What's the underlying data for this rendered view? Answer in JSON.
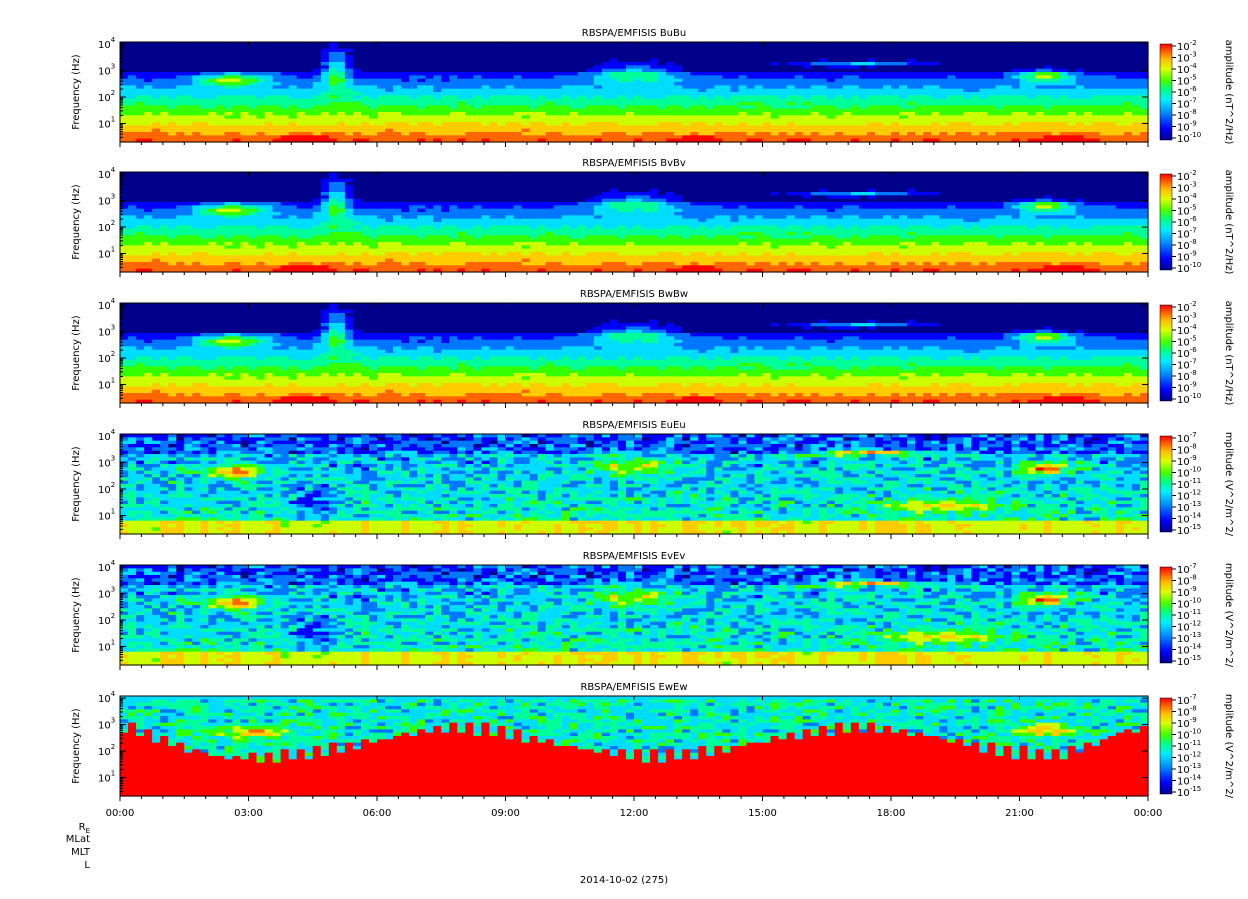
{
  "chart_data": [
    {
      "type": "heatmap",
      "title": "RBSPA/EMFISIS  BuBu",
      "ylabel": "Frequency (Hz)",
      "yscale": "log",
      "ylim": [
        2,
        12000
      ],
      "yticks": [
        {
          "v": 10,
          "t": "10",
          "e": "1"
        },
        {
          "v": 100,
          "t": "10",
          "e": "2"
        },
        {
          "v": 1000,
          "t": "10",
          "e": "3"
        },
        {
          "v": 10000,
          "t": "10",
          "e": "4"
        }
      ],
      "colorbar_label": "amplitude (nT^2/Hz)",
      "colorbar_ticks": [
        "-2",
        "-3",
        "-4",
        "-5",
        "-6",
        "-7",
        "-8",
        "-9",
        "-10"
      ],
      "style": "b"
    },
    {
      "type": "heatmap",
      "title": "RBSPA/EMFISIS  BvBv",
      "ylabel": "Frequency (Hz)",
      "yscale": "log",
      "ylim": [
        2,
        12000
      ],
      "yticks": [
        {
          "v": 10,
          "t": "10",
          "e": "1"
        },
        {
          "v": 100,
          "t": "10",
          "e": "2"
        },
        {
          "v": 1000,
          "t": "10",
          "e": "3"
        },
        {
          "v": 10000,
          "t": "10",
          "e": "4"
        }
      ],
      "colorbar_label": "amplitude (nT^2/Hz)",
      "colorbar_ticks": [
        "-2",
        "-3",
        "-4",
        "-5",
        "-6",
        "-7",
        "-8",
        "-9",
        "-10"
      ],
      "style": "b"
    },
    {
      "type": "heatmap",
      "title": "RBSPA/EMFISIS  BwBw",
      "ylabel": "Frequency (Hz)",
      "yscale": "log",
      "ylim": [
        2,
        12000
      ],
      "yticks": [
        {
          "v": 10,
          "t": "10",
          "e": "1"
        },
        {
          "v": 100,
          "t": "10",
          "e": "2"
        },
        {
          "v": 1000,
          "t": "10",
          "e": "3"
        },
        {
          "v": 10000,
          "t": "10",
          "e": "4"
        }
      ],
      "colorbar_label": "amplitude (nT^2/Hz)",
      "colorbar_ticks": [
        "-2",
        "-3",
        "-4",
        "-5",
        "-6",
        "-7",
        "-8",
        "-9",
        "-10"
      ],
      "style": "b"
    },
    {
      "type": "heatmap",
      "title": "RBSPA/EMFISIS  EuEu",
      "ylabel": "Frequency (Hz)",
      "yscale": "log",
      "ylim": [
        2,
        12000
      ],
      "yticks": [
        {
          "v": 10,
          "t": "10",
          "e": "1"
        },
        {
          "v": 100,
          "t": "10",
          "e": "2"
        },
        {
          "v": 1000,
          "t": "10",
          "e": "3"
        },
        {
          "v": 10000,
          "t": "10",
          "e": "4"
        }
      ],
      "colorbar_label": "mplitude (V^2/m^2/",
      "colorbar_ticks": [
        "-7",
        "-8",
        "-9",
        "-10",
        "-11",
        "-12",
        "-13",
        "-14",
        "-15"
      ],
      "style": "e"
    },
    {
      "type": "heatmap",
      "title": "RBSPA/EMFISIS  EvEv",
      "ylabel": "Frequency (Hz)",
      "yscale": "log",
      "ylim": [
        2,
        12000
      ],
      "yticks": [
        {
          "v": 10,
          "t": "10",
          "e": "1"
        },
        {
          "v": 100,
          "t": "10",
          "e": "2"
        },
        {
          "v": 1000,
          "t": "10",
          "e": "3"
        },
        {
          "v": 10000,
          "t": "10",
          "e": "4"
        }
      ],
      "colorbar_label": "mplitude (V^2/m^2/",
      "colorbar_ticks": [
        "-7",
        "-8",
        "-9",
        "-10",
        "-11",
        "-12",
        "-13",
        "-14",
        "-15"
      ],
      "style": "e"
    },
    {
      "type": "heatmap",
      "title": "RBSPA/EMFISIS  EwEw",
      "ylabel": "Frequency (Hz)",
      "yscale": "log",
      "ylim": [
        2,
        12000
      ],
      "yticks": [
        {
          "v": 10,
          "t": "10",
          "e": "1"
        },
        {
          "v": 100,
          "t": "10",
          "e": "2"
        },
        {
          "v": 1000,
          "t": "10",
          "e": "3"
        },
        {
          "v": 10000,
          "t": "10",
          "e": "4"
        }
      ],
      "colorbar_label": "mplitude (V^2/m^2/",
      "colorbar_ticks": [
        "-7",
        "-8",
        "-9",
        "-10",
        "-11",
        "-12",
        "-13",
        "-14",
        "-15"
      ],
      "style": "w"
    }
  ],
  "xaxis": {
    "ticks": [
      "00:00",
      "03:00",
      "06:00",
      "09:00",
      "12:00",
      "15:00",
      "18:00",
      "21:00",
      "00:00"
    ],
    "date": "2014-10-02 (275)"
  },
  "ephemeris_labels": [
    {
      "text": "R",
      "sub": "E"
    },
    {
      "text": "MLat"
    },
    {
      "text": "MLT"
    },
    {
      "text": "L"
    }
  ],
  "colormap": [
    "#00008b",
    "#0000ff",
    "#0077ff",
    "#00ddff",
    "#00ff99",
    "#33ff00",
    "#ccff00",
    "#ffcc00",
    "#ff6600",
    "#ff0000"
  ]
}
